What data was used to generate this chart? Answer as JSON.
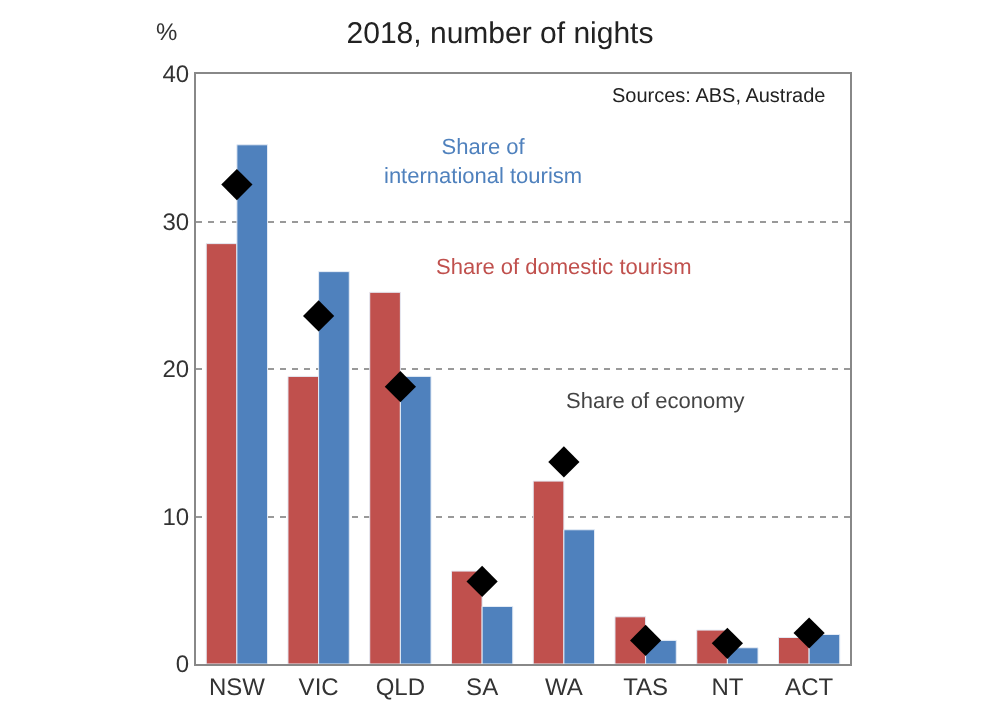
{
  "chart_data": {
    "type": "bar",
    "title": "2018, number of nights",
    "ylabel": "%",
    "categories": [
      "NSW",
      "VIC",
      "QLD",
      "SA",
      "WA",
      "TAS",
      "NT",
      "ACT"
    ],
    "series": [
      {
        "name": "Share of domestic tourism",
        "color": "#c0504d",
        "values": [
          28.5,
          19.5,
          25.2,
          6.3,
          12.4,
          3.2,
          2.3,
          1.8
        ]
      },
      {
        "name": "Share of international tourism",
        "color": "#4f81bd",
        "values": [
          35.2,
          26.6,
          19.5,
          3.9,
          9.1,
          1.6,
          1.1,
          2.0
        ]
      },
      {
        "name": "Share of economy",
        "type": "scatter",
        "marker": "diamond",
        "color": "#000000",
        "values": [
          32.5,
          23.6,
          18.8,
          5.6,
          13.7,
          1.6,
          1.4,
          2.1
        ]
      }
    ],
    "annotations": [
      "Sources: ABS, Austrade"
    ],
    "ylim": [
      0,
      40
    ],
    "yticks": [
      0,
      10,
      20,
      30,
      40
    ],
    "grid": "y",
    "line_style": "dotted",
    "legend": false
  }
}
